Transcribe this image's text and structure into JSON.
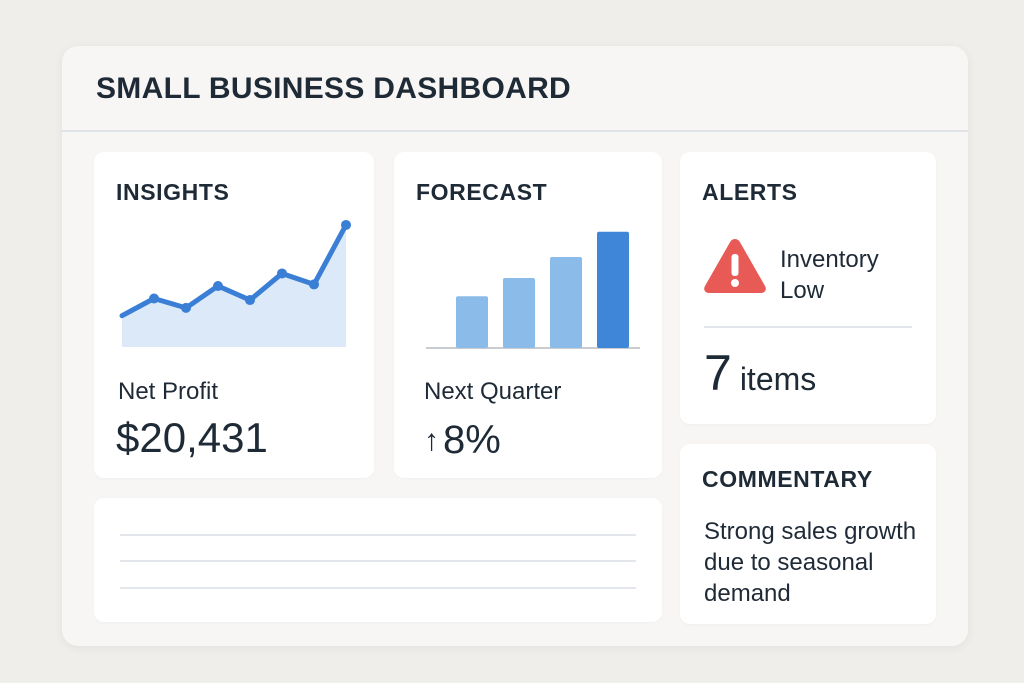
{
  "header": {
    "title": "SMALL BUSINESS DASHBOARD"
  },
  "insights": {
    "title": "INSIGHTS",
    "metric_label": "Net Profit",
    "metric_value": "$20,431",
    "line_color": "#3a7fd5",
    "area_color": "#dbe9f8"
  },
  "forecast": {
    "title": "FORECAST",
    "metric_label": "Next Quarter",
    "metric_value": "8%",
    "arrow_icon": "arrow-up-icon",
    "bar_colors": [
      "#8bbbe9",
      "#8bbbe9",
      "#8bbbe9",
      "#3f86d8"
    ]
  },
  "alerts": {
    "title": "ALERTS",
    "icon": "warning-icon",
    "icon_color": "#e85a55",
    "message": "Inventory Low",
    "count": "7",
    "count_unit": "items"
  },
  "commentary": {
    "title": "COMMENTARY",
    "text": "Strong sales growth due to seasonal demand"
  },
  "chart_data": [
    {
      "type": "area",
      "x": [
        1,
        2,
        3,
        4,
        5,
        6,
        7,
        8
      ],
      "values": [
        2,
        3.1,
        2.5,
        3.9,
        3,
        4.7,
        4,
        7.8
      ],
      "ylim": [
        0,
        8.5
      ]
    },
    {
      "type": "bar",
      "values": [
        3.7,
        5,
        6.5,
        8.3
      ],
      "ylim": [
        0,
        9
      ]
    }
  ]
}
